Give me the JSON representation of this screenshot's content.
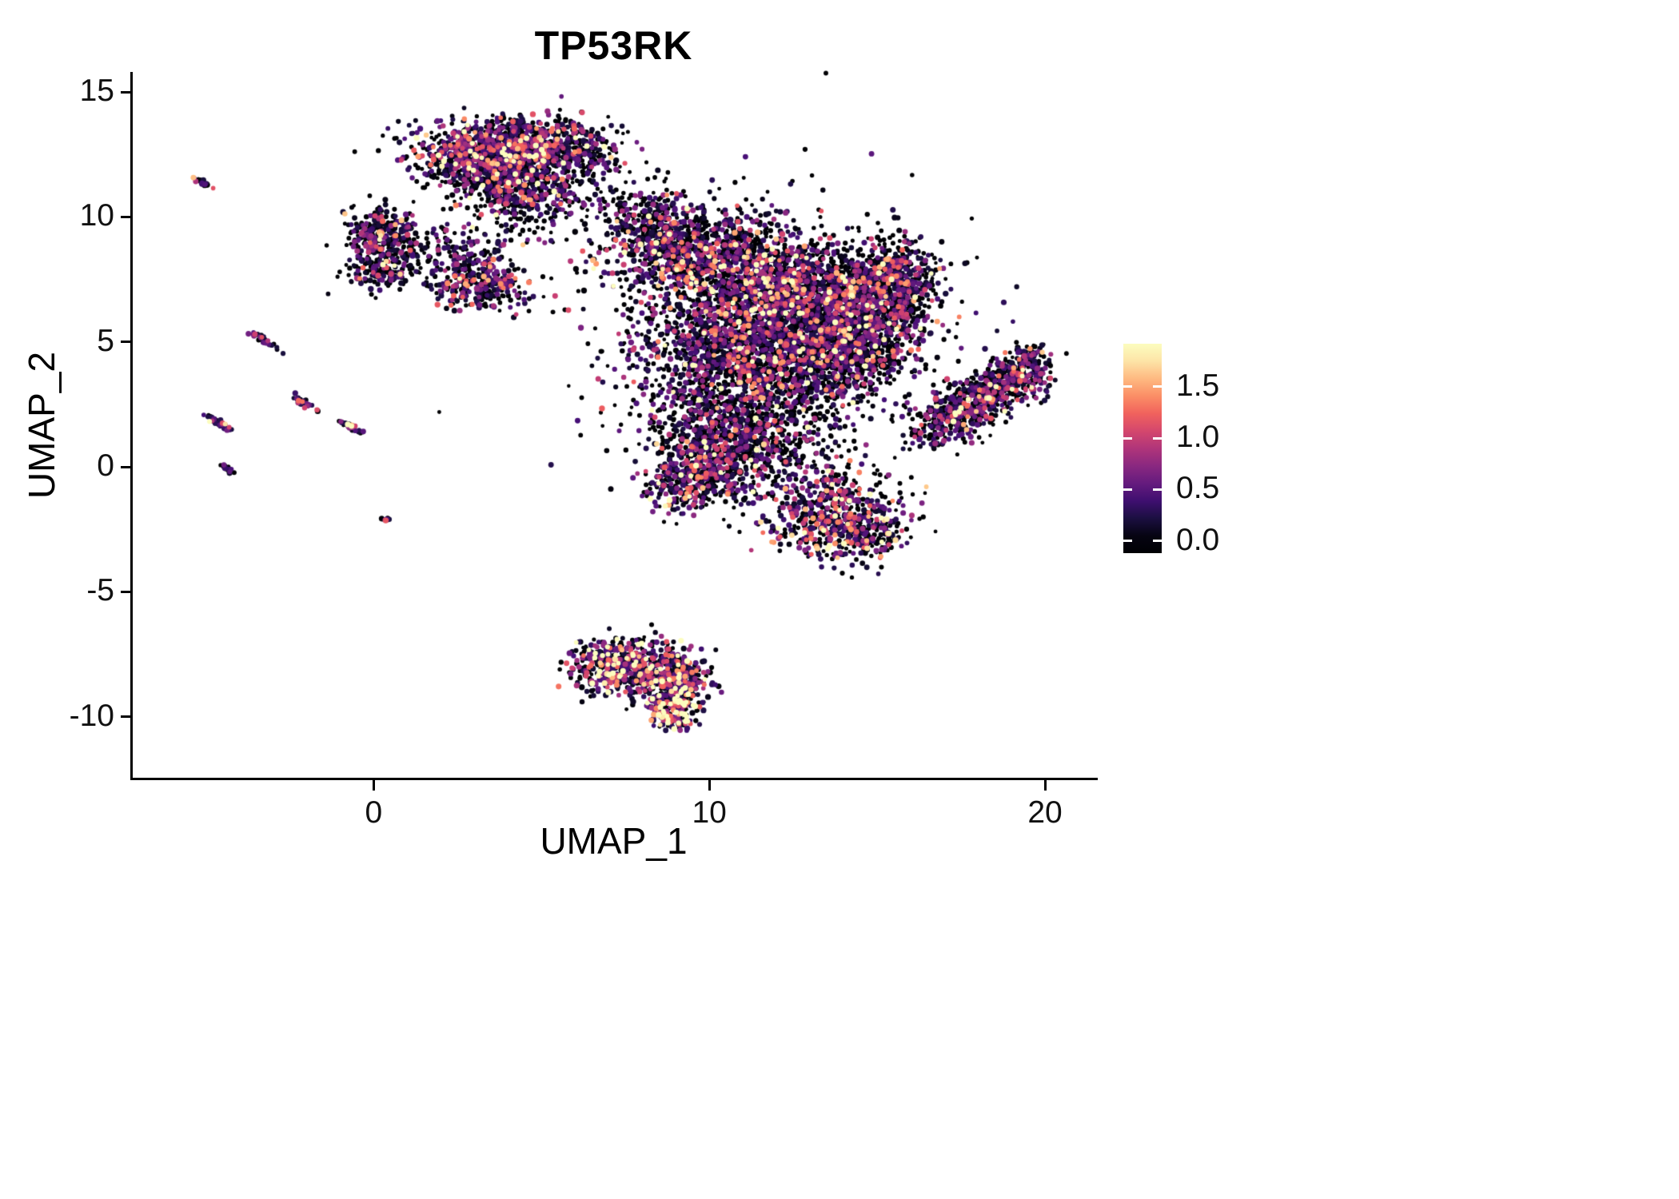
{
  "chart_data": {
    "type": "scatter",
    "title": "TP53RK",
    "xlabel": "UMAP_1",
    "ylabel": "UMAP_2",
    "x_domain": [
      -7.2,
      21.5
    ],
    "y_domain": [
      -12.5,
      15.8
    ],
    "grid": false,
    "x_ticks": [
      {
        "v": 0,
        "label": "0"
      },
      {
        "v": 10,
        "label": "10"
      },
      {
        "v": 20,
        "label": "20"
      }
    ],
    "y_ticks": [
      {
        "v": -10,
        "label": "-10"
      },
      {
        "v": -5,
        "label": "-5"
      },
      {
        "v": 0,
        "label": "0"
      },
      {
        "v": 5,
        "label": "5"
      },
      {
        "v": 10,
        "label": "10"
      },
      {
        "v": 15,
        "label": "15"
      }
    ],
    "colorbar": {
      "position": "right",
      "min": -0.12,
      "max": 1.92,
      "cmap_max": 1.85,
      "ticks": [
        {
          "v": 1.5,
          "label": "1.5"
        },
        {
          "v": 1.0,
          "label": "1.0"
        },
        {
          "v": 0.5,
          "label": "0.5"
        },
        {
          "v": 0.0,
          "label": "0.0"
        }
      ],
      "stops": [
        "#000004",
        "#180f3d",
        "#440f76",
        "#721f81",
        "#9e2f7f",
        "#cd4071",
        "#f1605d",
        "#fd9567",
        "#feca8d",
        "#fcfdbf"
      ]
    },
    "clusters": [
      {
        "x": 3.3,
        "y": 12.6,
        "sx": 1.1,
        "sy": 0.65,
        "n": 850,
        "z": 0.35,
        "m": 0.5
      },
      {
        "x": 4.9,
        "y": 12.9,
        "sx": 0.9,
        "sy": 0.5,
        "n": 450,
        "z": 0.35,
        "m": 0.5
      },
      {
        "x": 4.2,
        "y": 11.4,
        "sx": 1.0,
        "sy": 0.6,
        "n": 430,
        "z": 0.4,
        "m": 0.5
      },
      {
        "x": 4.4,
        "y": 10.3,
        "sx": 0.9,
        "sy": 0.7,
        "n": 150,
        "z": 0.5,
        "m": 0.45
      },
      {
        "x": 6.3,
        "y": 12.7,
        "sx": 0.5,
        "sy": 0.5,
        "n": 110,
        "z": 0.45,
        "m": 0.45
      },
      {
        "x": 6.6,
        "y": 11.4,
        "sx": 0.9,
        "sy": 0.8,
        "n": 90,
        "z": 0.55,
        "m": 0.4
      },
      {
        "x": 0.3,
        "y": 9.4,
        "sx": 0.55,
        "sy": 0.5,
        "n": 240,
        "z": 0.4,
        "m": 0.5
      },
      {
        "x": 0.2,
        "y": 7.9,
        "sx": 0.5,
        "sy": 0.45,
        "n": 170,
        "z": 0.4,
        "m": 0.5
      },
      {
        "x": 1.1,
        "y": 8.7,
        "sx": 0.5,
        "sy": 0.4,
        "n": 60,
        "z": 0.5,
        "m": 0.4
      },
      {
        "x": 3.2,
        "y": 7.4,
        "sx": 0.75,
        "sy": 0.55,
        "n": 340,
        "z": 0.4,
        "m": 0.5
      },
      {
        "x": 2.6,
        "y": 8.7,
        "sx": 0.5,
        "sy": 0.5,
        "n": 70,
        "z": 0.5,
        "m": 0.4
      },
      {
        "x": 9.3,
        "y": 8.7,
        "sx": 1.2,
        "sy": 0.9,
        "n": 850,
        "z": 0.45,
        "m": 0.5
      },
      {
        "x": 11.5,
        "y": 7.5,
        "sx": 1.3,
        "sy": 1.0,
        "n": 900,
        "z": 0.4,
        "m": 0.55
      },
      {
        "x": 13.0,
        "y": 6.3,
        "sx": 1.2,
        "sy": 1.0,
        "n": 800,
        "z": 0.4,
        "m": 0.55
      },
      {
        "x": 10.5,
        "y": 5.0,
        "sx": 1.3,
        "sy": 1.0,
        "n": 800,
        "z": 0.45,
        "m": 0.5
      },
      {
        "x": 12.5,
        "y": 3.8,
        "sx": 1.2,
        "sy": 0.9,
        "n": 600,
        "z": 0.45,
        "m": 0.5
      },
      {
        "x": 14.6,
        "y": 6.8,
        "sx": 0.9,
        "sy": 1.0,
        "n": 500,
        "z": 0.4,
        "m": 0.55
      },
      {
        "x": 15.7,
        "y": 7.7,
        "sx": 0.65,
        "sy": 0.8,
        "n": 330,
        "z": 0.45,
        "m": 0.5
      },
      {
        "x": 14.2,
        "y": 4.6,
        "sx": 0.9,
        "sy": 0.8,
        "n": 400,
        "z": 0.45,
        "m": 0.5
      },
      {
        "x": 15.1,
        "y": 5.6,
        "sx": 0.8,
        "sy": 0.9,
        "n": 250,
        "z": 0.45,
        "m": 0.5
      },
      {
        "x": 9.9,
        "y": 2.6,
        "sx": 0.9,
        "sy": 0.9,
        "n": 330,
        "z": 0.55,
        "m": 0.45
      },
      {
        "x": 10.3,
        "y": 0.3,
        "sx": 1.0,
        "sy": 0.9,
        "n": 500,
        "z": 0.4,
        "m": 0.55
      },
      {
        "x": 9.4,
        "y": -0.6,
        "sx": 0.7,
        "sy": 0.6,
        "n": 250,
        "z": 0.4,
        "m": 0.55
      },
      {
        "x": 12.0,
        "y": 1.1,
        "sx": 1.1,
        "sy": 0.9,
        "n": 300,
        "z": 0.55,
        "m": 0.45
      },
      {
        "x": 13.6,
        "y": -1.8,
        "sx": 1.0,
        "sy": 0.9,
        "n": 550,
        "z": 0.35,
        "m": 0.6
      },
      {
        "x": 14.7,
        "y": -2.7,
        "sx": 0.6,
        "sy": 0.55,
        "n": 180,
        "z": 0.4,
        "m": 0.55
      },
      {
        "x": 8.3,
        "y": 9.9,
        "sx": 0.7,
        "sy": 0.6,
        "n": 140,
        "z": 0.5,
        "m": 0.5
      },
      {
        "x": 11.8,
        "y": 5.5,
        "sx": 3.0,
        "sy": 2.8,
        "n": 550,
        "z": 0.65,
        "m": 0.35
      },
      {
        "x": 17.2,
        "y": 1.9,
        "sx": 0.8,
        "sy": 0.45,
        "n": 240,
        "z": 0.5,
        "m": 0.5,
        "a": 40
      },
      {
        "x": 18.2,
        "y": 2.8,
        "sx": 0.8,
        "sy": 0.5,
        "n": 330,
        "z": 0.5,
        "m": 0.5,
        "a": 40
      },
      {
        "x": 19.1,
        "y": 3.6,
        "sx": 0.6,
        "sy": 0.45,
        "n": 240,
        "z": 0.5,
        "m": 0.5,
        "a": 40
      },
      {
        "x": 19.5,
        "y": 4.3,
        "sx": 0.3,
        "sy": 0.3,
        "n": 70,
        "z": 0.5,
        "m": 0.5
      },
      {
        "x": 7.3,
        "y": -7.6,
        "sx": 0.7,
        "sy": 0.4,
        "n": 240,
        "z": 0.3,
        "m": 0.7
      },
      {
        "x": 8.3,
        "y": -8.1,
        "sx": 0.8,
        "sy": 0.5,
        "n": 300,
        "z": 0.3,
        "m": 0.7
      },
      {
        "x": 8.8,
        "y": -9.0,
        "sx": 0.5,
        "sy": 0.5,
        "n": 200,
        "z": 0.3,
        "m": 0.75
      },
      {
        "x": 9.0,
        "y": -9.9,
        "sx": 0.35,
        "sy": 0.3,
        "n": 130,
        "z": 0.2,
        "m": 1.0
      },
      {
        "x": 7.0,
        "y": -8.4,
        "sx": 0.5,
        "sy": 0.4,
        "n": 100,
        "z": 0.35,
        "m": 0.6
      },
      {
        "x": 9.4,
        "y": -8.5,
        "sx": 0.4,
        "sy": 0.35,
        "n": 70,
        "z": 0.35,
        "m": 0.7
      },
      {
        "x": -5.15,
        "y": 11.4,
        "sx": 0.18,
        "sy": 0.05,
        "n": 25,
        "z": 0.35,
        "m": 0.55,
        "a": -40
      },
      {
        "x": -3.3,
        "y": 5.1,
        "sx": 0.25,
        "sy": 0.06,
        "n": 40,
        "z": 0.4,
        "m": 0.5,
        "a": -40
      },
      {
        "x": -2.15,
        "y": 2.6,
        "sx": 0.22,
        "sy": 0.06,
        "n": 35,
        "z": 0.4,
        "m": 0.5,
        "a": -40
      },
      {
        "x": -4.6,
        "y": 1.75,
        "sx": 0.25,
        "sy": 0.06,
        "n": 40,
        "z": 0.35,
        "m": 0.5,
        "a": -40
      },
      {
        "x": -0.6,
        "y": 1.55,
        "sx": 0.22,
        "sy": 0.06,
        "n": 32,
        "z": 0.3,
        "m": 0.7,
        "a": -40
      },
      {
        "x": -4.35,
        "y": -0.1,
        "sx": 0.12,
        "sy": 0.05,
        "n": 20,
        "z": 0.5,
        "m": 0.4,
        "a": -40
      },
      {
        "x": 0.35,
        "y": -2.1,
        "sx": 0.07,
        "sy": 0.05,
        "n": 10,
        "z": 0.5,
        "m": 0.4
      }
    ]
  }
}
